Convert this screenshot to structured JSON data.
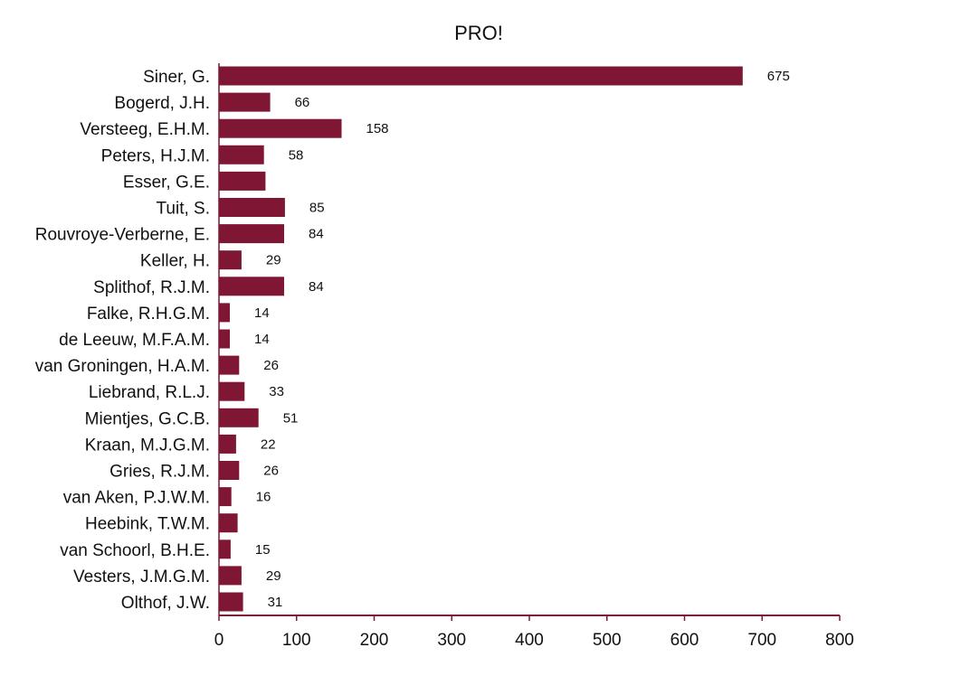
{
  "chart_data": {
    "type": "bar",
    "orientation": "horizontal",
    "title": "PRO!",
    "xlabel": "",
    "ylabel": "",
    "categories": [
      "Siner, G.",
      "Bogerd, J.H.",
      "Versteeg, E.H.M.",
      "Peters, H.J.M.",
      "Esser, G.E.",
      "Tuit, S.",
      "Rouvroye-Verberne, E.",
      "Keller, H.",
      "Splithof, R.J.M.",
      "Falke, R.H.G.M.",
      "de Leeuw, M.F.A.M.",
      "van Groningen, H.A.M.",
      "Liebrand, R.L.J.",
      "Mientjes, G.C.B.",
      "Kraan, M.J.G.M.",
      "Gries, R.J.M.",
      "van Aken, P.J.W.M.",
      "Heebink, T.W.M.",
      "van Schoorl, B.H.E.",
      "Vesters, J.M.G.M.",
      "Olthof, J.W."
    ],
    "values": [
      675,
      66,
      158,
      58,
      60,
      85,
      84,
      29,
      84,
      14,
      14,
      26,
      33,
      51,
      22,
      26,
      16,
      24,
      15,
      29,
      31
    ],
    "value_labels": [
      "675",
      "66",
      "158",
      "58",
      "",
      "85",
      "84",
      "29",
      "84",
      "14",
      "14",
      "26",
      "33",
      "51",
      "22",
      "26",
      "16",
      "",
      "15",
      "29",
      "31"
    ],
    "xlim": [
      0,
      800
    ],
    "x_ticks": [
      0,
      100,
      200,
      300,
      400,
      500,
      600,
      700,
      800
    ],
    "grid": false,
    "legend": "none",
    "bar_color": "#7f1734",
    "axis_color": "#7f1734"
  }
}
